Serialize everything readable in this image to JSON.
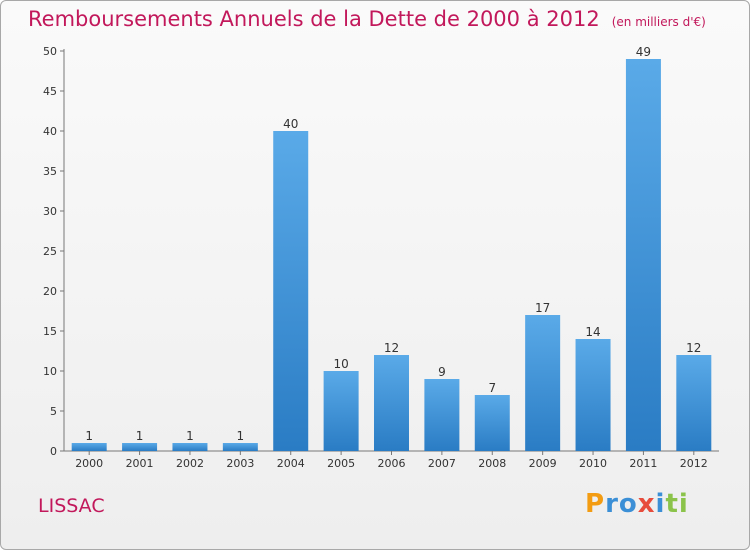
{
  "chart_data": {
    "type": "bar",
    "title": "Remboursements Annuels de la Dette de 2000 à 2012",
    "subtitle": "(en milliers d'€)",
    "categories": [
      "2000",
      "2001",
      "2002",
      "2003",
      "2004",
      "2005",
      "2006",
      "2007",
      "2008",
      "2009",
      "2010",
      "2011",
      "2012"
    ],
    "values": [
      1,
      1,
      1,
      1,
      40,
      10,
      12,
      9,
      7,
      17,
      14,
      49,
      12
    ],
    "ylim": [
      0,
      50
    ],
    "yticks": [
      0,
      5,
      10,
      15,
      20,
      25,
      30,
      35,
      40,
      45,
      50
    ],
    "xlabel": "",
    "ylabel": "",
    "grid": false,
    "bar_color": "#3a8fd6"
  },
  "footer": {
    "city": "LISSAC",
    "logo": [
      "P",
      "r",
      "o",
      "x",
      "i",
      "t",
      "i"
    ]
  },
  "colors": {
    "title": "#c2185b",
    "logo": [
      "#f39c12",
      "#3b8fd6",
      "#3b8fd6",
      "#e74c3c",
      "#3b8fd6",
      "#8bc34a",
      "#8bc34a"
    ]
  }
}
